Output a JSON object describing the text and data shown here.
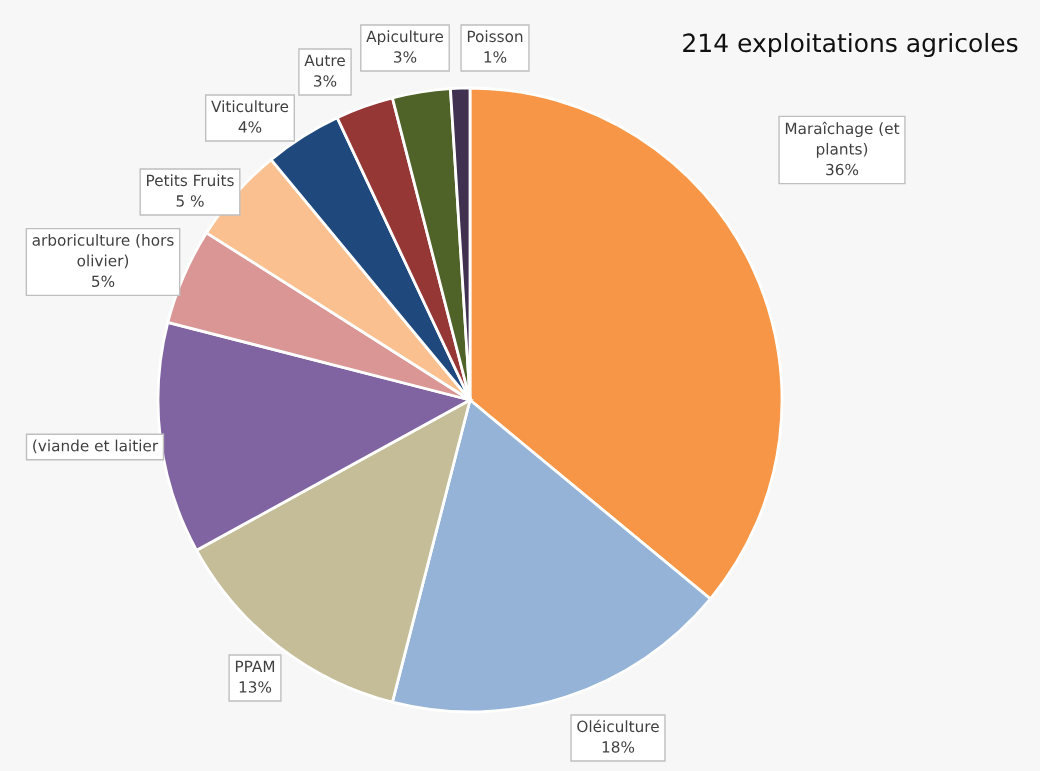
{
  "chart_data": {
    "type": "pie",
    "title": "214 exploitations agricoles",
    "categories": [
      "Maraîchage (et\nplants)",
      "Oléiculture",
      "PPAM",
      "(viande et laitier",
      "arboriculture (hors\nolivier)",
      "Petits Fruits",
      "Viticulture",
      "Autre",
      "Apiculture",
      "Poisson"
    ],
    "values": [
      36,
      18,
      13,
      12,
      5,
      5,
      4,
      3,
      3,
      1
    ],
    "value_labels": [
      "36%",
      "18%",
      "13%",
      null,
      "5%",
      "5 %",
      "4%",
      "3%",
      "3%",
      "1%"
    ],
    "colors": [
      "#f79646",
      "#95b3d7",
      "#c4bd97",
      "#8064a2",
      "#d99694",
      "#fac090",
      "#1f497d",
      "#953735",
      "#4f6228",
      "#403151"
    ]
  }
}
